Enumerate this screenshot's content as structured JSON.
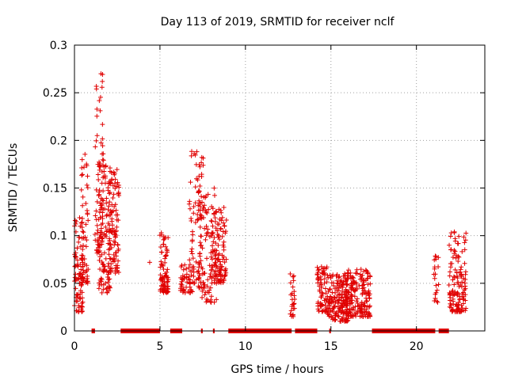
{
  "chart_data": {
    "type": "scatter",
    "title": "Day 113 of 2019, SRMTID for receiver nclf",
    "xlabel": "GPS time / hours",
    "ylabel": "SRMTID / TECUs",
    "xlim": [
      0,
      24
    ],
    "ylim": [
      0,
      0.3
    ],
    "xticks": [
      0,
      5,
      10,
      15,
      20
    ],
    "yticks": [
      0,
      0.05,
      0.1,
      0.15,
      0.2,
      0.25,
      0.3
    ],
    "ytick_labels": [
      "0",
      "0.05",
      "0.1",
      "0.15",
      "0.2",
      "0.25",
      "0.3"
    ],
    "grid": true,
    "series_color": "#e00000",
    "zero_value_ranges_hours": [
      [
        1.0,
        1.2
      ],
      [
        2.7,
        5.0
      ],
      [
        5.6,
        6.3
      ],
      [
        7.4,
        7.5
      ],
      [
        8.1,
        8.2
      ],
      [
        9.0,
        12.7
      ],
      [
        12.9,
        14.2
      ],
      [
        14.9,
        15.0
      ],
      [
        17.4,
        21.1
      ],
      [
        21.3,
        21.9
      ]
    ],
    "clusters": [
      {
        "x": [
          0.0,
          0.5
        ],
        "y": [
          0.02,
          0.12
        ],
        "n": 90
      },
      {
        "x": [
          0.4,
          0.8
        ],
        "y": [
          0.05,
          0.19
        ],
        "n": 55
      },
      {
        "x": [
          1.2,
          1.7
        ],
        "y": [
          0.08,
          0.27
        ],
        "n": 70
      },
      {
        "x": [
          1.4,
          2.1
        ],
        "y": [
          0.04,
          0.18
        ],
        "n": 110
      },
      {
        "x": [
          2.0,
          2.6
        ],
        "y": [
          0.06,
          0.17
        ],
        "n": 100
      },
      {
        "x": [
          5.0,
          5.5
        ],
        "y": [
          0.04,
          0.105
        ],
        "n": 80
      },
      {
        "x": [
          6.2,
          6.9
        ],
        "y": [
          0.04,
          0.07
        ],
        "n": 45
      },
      {
        "x": [
          6.7,
          7.6
        ],
        "y": [
          0.05,
          0.19
        ],
        "n": 80
      },
      {
        "x": [
          7.2,
          8.3
        ],
        "y": [
          0.03,
          0.15
        ],
        "n": 90
      },
      {
        "x": [
          8.0,
          8.9
        ],
        "y": [
          0.05,
          0.13
        ],
        "n": 120
      },
      {
        "x": [
          12.6,
          12.9
        ],
        "y": [
          0.015,
          0.06
        ],
        "n": 25
      },
      {
        "x": [
          14.2,
          14.8
        ],
        "y": [
          0.02,
          0.07
        ],
        "n": 70
      },
      {
        "x": [
          14.8,
          16.0
        ],
        "y": [
          0.01,
          0.06
        ],
        "n": 160
      },
      {
        "x": [
          15.8,
          17.3
        ],
        "y": [
          0.015,
          0.065
        ],
        "n": 200
      },
      {
        "x": [
          21.0,
          21.3
        ],
        "y": [
          0.03,
          0.08
        ],
        "n": 20
      },
      {
        "x": [
          21.9,
          22.9
        ],
        "y": [
          0.02,
          0.105
        ],
        "n": 130
      }
    ],
    "single_points": [
      {
        "x": 4.4,
        "y": 0.072
      },
      {
        "x": 7.0,
        "y": 0.186
      },
      {
        "x": 1.55,
        "y": 0.27
      }
    ]
  }
}
